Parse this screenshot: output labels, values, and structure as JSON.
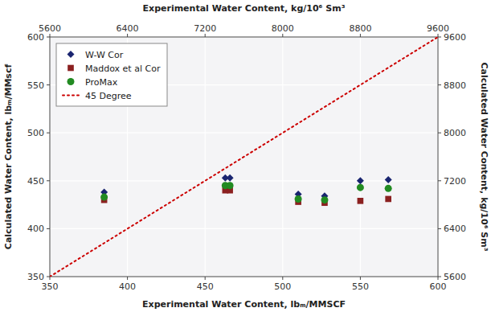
{
  "chart_data": {
    "type": "scatter",
    "x_label": "Experimental Water Content, lbₘ/MMSCF",
    "y_label": "Calculated Water Content, lbₘ/MMscf",
    "x2_label": "Experimental Water Content, kg/10⁶ Sm³",
    "y2_label": "Calculated Water Content, kg/10⁶ Sm³",
    "xlim": [
      350,
      600
    ],
    "ylim": [
      350,
      600
    ],
    "xticks": [
      350,
      400,
      450,
      500,
      550,
      600
    ],
    "yticks": [
      350,
      400,
      450,
      500,
      550,
      600
    ],
    "x2lim": [
      5600,
      9600
    ],
    "x2ticks": [
      5600,
      6400,
      7200,
      8000,
      8800,
      9600
    ],
    "y2lim": [
      5600,
      9600
    ],
    "y2ticks": [
      5600,
      6400,
      7200,
      8000,
      8800,
      9600
    ],
    "grid": true,
    "legend": "upper left",
    "series": [
      {
        "name": "W-W Cor",
        "color": "#1a2570",
        "marker": "diamond",
        "x": [
          385,
          463,
          466,
          510,
          527,
          550,
          568
        ],
        "values": [
          438,
          453,
          453,
          436,
          434,
          450,
          451
        ]
      },
      {
        "name": "Maddox et al Cor",
        "color": "#8b2020",
        "marker": "square",
        "x": [
          385,
          463,
          466,
          510,
          527,
          550,
          568
        ],
        "values": [
          430,
          440,
          440,
          428,
          427,
          429,
          431
        ]
      },
      {
        "name": "ProMax",
        "color": "#228b22",
        "marker": "circle",
        "x": [
          385,
          463,
          466,
          510,
          527,
          550,
          568
        ],
        "values": [
          433,
          445,
          445,
          431,
          430,
          443,
          442
        ]
      },
      {
        "name": "45 Degree",
        "type": "line",
        "color": "#cc0000",
        "line_style": "dotted",
        "x": [
          350,
          600
        ],
        "values": [
          350,
          600
        ]
      }
    ]
  }
}
